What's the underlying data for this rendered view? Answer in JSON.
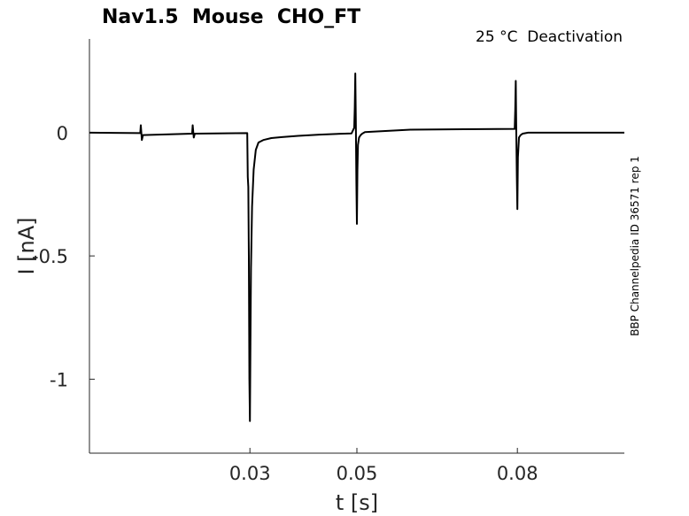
{
  "chart_data": {
    "type": "line",
    "title": "Nav1.5  Mouse  CHO_FT",
    "subtitle": "25 °C  Deactivation",
    "side_label": "BBP Channelpedia ID 36571 rep 1",
    "xlabel": "t [s]",
    "ylabel": "I [nA]",
    "xlim": [
      0,
      0.1
    ],
    "ylim": [
      -1.3,
      0.38
    ],
    "xticks": [
      0.03,
      0.05,
      0.08
    ],
    "xtick_labels": [
      "0.03",
      "0.05",
      "0.08"
    ],
    "yticks": [
      0,
      -0.5,
      -1
    ],
    "ytick_labels": [
      "0",
      "-0.5",
      "-1"
    ],
    "grid": false,
    "line_color": "#000000",
    "series": [
      {
        "x": [
          0,
          0.0095,
          0.0096,
          0.0098,
          0.01,
          0.0192,
          0.0193,
          0.0195,
          0.0197,
          0.0295,
          0.0296,
          0.0297,
          0.0298,
          0.0299,
          0.03,
          0.0301,
          0.0302,
          0.0304,
          0.0307,
          0.0311,
          0.0316,
          0.0325,
          0.034,
          0.036,
          0.039,
          0.043,
          0.049,
          0.0495,
          0.0496,
          0.0497,
          0.0498,
          0.0499,
          0.05,
          0.0501,
          0.0502,
          0.0504,
          0.0507,
          0.051,
          0.0515,
          0.053,
          0.06,
          0.07,
          0.0795,
          0.0796,
          0.0797,
          0.0798,
          0.0799,
          0.08,
          0.0801,
          0.0803,
          0.0806,
          0.081,
          0.082,
          0.085,
          0.1
        ],
        "y": [
          0,
          -0.002,
          0.03,
          -0.03,
          -0.01,
          -0.004,
          0.03,
          -0.02,
          -0.004,
          -0.002,
          -0.18,
          -0.22,
          -0.5,
          -1.0,
          -1.17,
          -0.85,
          -0.55,
          -0.3,
          -0.15,
          -0.07,
          -0.04,
          -0.03,
          -0.022,
          -0.018,
          -0.013,
          -0.008,
          -0.003,
          0.02,
          0.1,
          0.24,
          0.05,
          -0.2,
          -0.37,
          -0.15,
          -0.05,
          -0.02,
          -0.01,
          -0.004,
          0.002,
          0.004,
          0.012,
          0.014,
          0.015,
          0.09,
          0.21,
          0.0,
          -0.18,
          -0.31,
          -0.1,
          -0.02,
          -0.01,
          -0.004,
          0.0,
          0.0,
          0.0
        ]
      }
    ]
  }
}
